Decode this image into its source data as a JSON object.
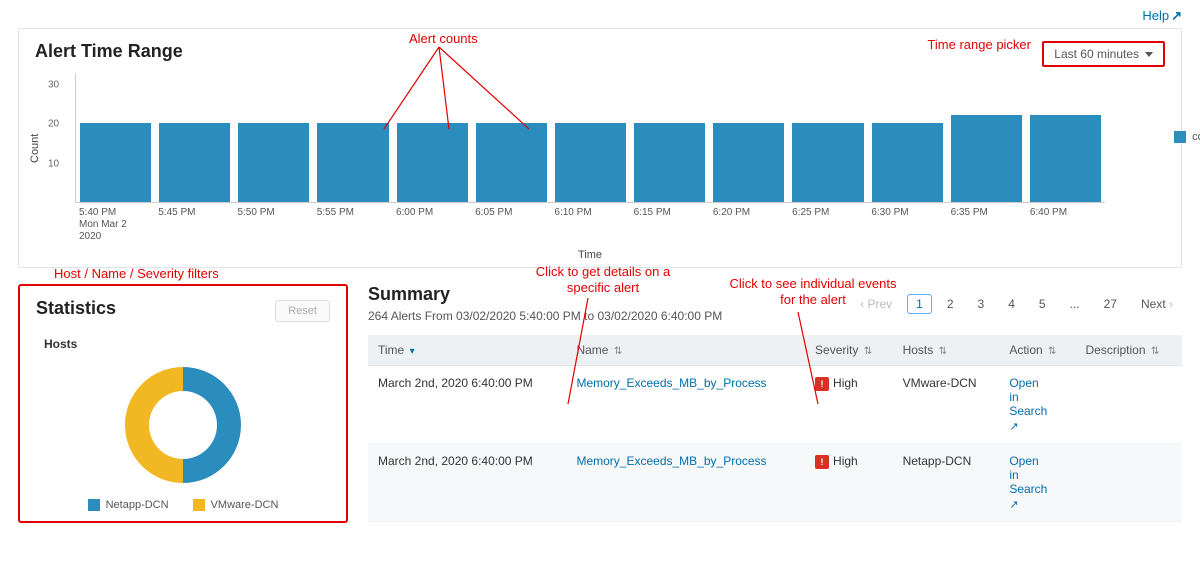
{
  "help_link": "Help",
  "alert_panel": {
    "title": "Alert Time Range",
    "time_picker_label": "Last 60 minutes",
    "annot_alert_counts": "Alert counts",
    "annot_time_picker": "Time range picker",
    "chart": {
      "type": "bar",
      "ylabel": "Count",
      "xlabel": "Time",
      "ylim_max": 33,
      "yticks": [
        10,
        20,
        30
      ],
      "bar_color": "#2b8cbe",
      "legend_label": "count",
      "bars": [
        {
          "label": "5:40 PM",
          "sublabel": "Mon Mar 2",
          "sublabel2": "2020",
          "value": 20
        },
        {
          "label": "5:45 PM",
          "value": 20
        },
        {
          "label": "5:50 PM",
          "value": 20
        },
        {
          "label": "5:55 PM",
          "value": 20
        },
        {
          "label": "6:00 PM",
          "value": 20
        },
        {
          "label": "6:05 PM",
          "value": 20
        },
        {
          "label": "6:10 PM",
          "value": 20
        },
        {
          "label": "6:15 PM",
          "value": 20
        },
        {
          "label": "6:20 PM",
          "value": 20
        },
        {
          "label": "6:25 PM",
          "value": 20
        },
        {
          "label": "6:30 PM",
          "value": 20
        },
        {
          "label": "6:35 PM",
          "value": 22
        },
        {
          "label": "6:40 PM",
          "value": 22
        }
      ]
    }
  },
  "stats_panel": {
    "annot_filters": "Host / Name / Severity filters",
    "title": "Statistics",
    "reset_label": "Reset",
    "hosts_title": "Hosts",
    "donut": {
      "slices": [
        {
          "label": "Netapp-DCN",
          "color": "#2b8cbe",
          "value": 50
        },
        {
          "label": "VMware-DCN",
          "color": "#f2b824",
          "value": 50
        }
      ],
      "inner_radius": 34,
      "outer_radius": 58
    }
  },
  "summary_panel": {
    "title": "Summary",
    "subtitle": "264 Alerts From 03/02/2020 5:40:00 PM to 03/02/2020 6:40:00 PM",
    "annot_specific_alert": "Click to get details on a specific alert",
    "annot_individual_events": "Click to see individual events for the alert",
    "pager": {
      "prev": "Prev",
      "next": "Next",
      "pages": [
        "1",
        "2",
        "3",
        "4",
        "5",
        "...",
        "27"
      ],
      "current": "1"
    },
    "columns": [
      {
        "key": "time",
        "label": "Time",
        "sorted": true
      },
      {
        "key": "name",
        "label": "Name"
      },
      {
        "key": "severity",
        "label": "Severity"
      },
      {
        "key": "hosts",
        "label": "Hosts"
      },
      {
        "key": "action",
        "label": "Action"
      },
      {
        "key": "description",
        "label": "Description"
      }
    ],
    "rows": [
      {
        "time": "March 2nd, 2020 6:40:00 PM",
        "name": "Memory_Exceeds_MB_by_Process",
        "severity": "High",
        "hosts": "VMware-DCN",
        "action": "Open in Search",
        "description": ""
      },
      {
        "time": "March 2nd, 2020 6:40:00 PM",
        "name": "Memory_Exceeds_MB_by_Process",
        "severity": "High",
        "hosts": "Netapp-DCN",
        "action": "Open in Search",
        "description": ""
      }
    ]
  },
  "colors": {
    "annotation_red": "#e30000",
    "link_blue": "#006eab",
    "bar_blue": "#2b8cbe",
    "donut_yellow": "#f2b824",
    "table_header_bg": "#eef1f3",
    "panel_border": "#e1e4e6",
    "sev_badge": "#d93025"
  }
}
